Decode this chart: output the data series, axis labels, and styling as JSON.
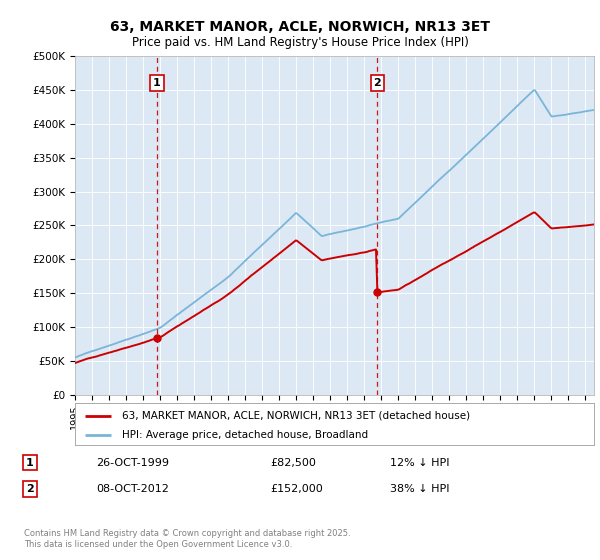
{
  "title": "63, MARKET MANOR, ACLE, NORWICH, NR13 3ET",
  "subtitle": "Price paid vs. HM Land Registry's House Price Index (HPI)",
  "ylabel_ticks": [
    "£0",
    "£50K",
    "£100K",
    "£150K",
    "£200K",
    "£250K",
    "£300K",
    "£350K",
    "£400K",
    "£450K",
    "£500K"
  ],
  "ytick_vals": [
    0,
    50000,
    100000,
    150000,
    200000,
    250000,
    300000,
    350000,
    400000,
    450000,
    500000
  ],
  "ylim": [
    0,
    500000
  ],
  "xlim_start": 1995.0,
  "xlim_end": 2025.5,
  "hpi_color": "#7ab5d8",
  "price_color": "#cc0000",
  "marker1_date": 1999.82,
  "marker2_date": 2012.77,
  "marker1_price": 82500,
  "marker2_price": 152000,
  "bg_color": "#dce9f5",
  "legend_label_red": "63, MARKET MANOR, ACLE, NORWICH, NR13 3ET (detached house)",
  "legend_label_blue": "HPI: Average price, detached house, Broadland",
  "note1_label": "1",
  "note1_date": "26-OCT-1999",
  "note1_price": "£82,500",
  "note1_hpi": "12% ↓ HPI",
  "note2_label": "2",
  "note2_date": "08-OCT-2012",
  "note2_price": "£152,000",
  "note2_hpi": "38% ↓ HPI",
  "footer": "Contains HM Land Registry data © Crown copyright and database right 2025.\nThis data is licensed under the Open Government Licence v3.0."
}
